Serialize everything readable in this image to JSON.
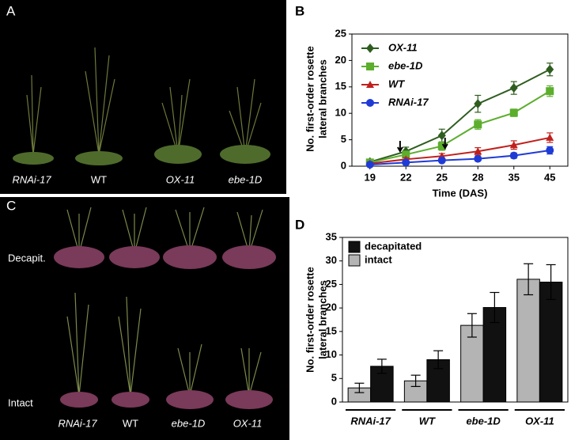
{
  "panel_a": {
    "letter": "A",
    "labels": [
      "RNAi-17",
      "WT",
      "OX-11",
      "ebe-1D"
    ]
  },
  "panel_c": {
    "letter": "C",
    "rows": [
      "Decapit.",
      "Intact"
    ],
    "labels": [
      "RNAi-17",
      "WT",
      "ebe-1D",
      "OX-11"
    ]
  },
  "chart_data": [
    {
      "type": "line",
      "panel": "B",
      "xlabel": "Time (DAS)",
      "ylabel": [
        "No. first-order rosette",
        "lateral branches"
      ],
      "categories": [
        "19",
        "22",
        "25",
        "28",
        "35",
        "45"
      ],
      "ylim": [
        0,
        25
      ],
      "yticks": [
        0,
        5,
        10,
        15,
        20,
        25
      ],
      "series": [
        {
          "name": "OX-11",
          "color": "#2e5d1f",
          "marker": "diamond",
          "values": [
            0.8,
            2.8,
            5.8,
            11.8,
            14.8,
            18.3
          ],
          "errors": [
            0.5,
            0.8,
            1.2,
            1.6,
            1.2,
            1.2
          ]
        },
        {
          "name": "ebe-1D",
          "color": "#5cae2c",
          "marker": "square",
          "values": [
            0.7,
            2.2,
            3.8,
            7.9,
            10.1,
            14.2
          ],
          "errors": [
            0.3,
            0.5,
            0.8,
            0.9,
            0.7,
            1.0
          ]
        },
        {
          "name": "WT",
          "color": "#c0201d",
          "marker": "triangle",
          "values": [
            0.5,
            1.3,
            1.9,
            2.8,
            4.0,
            5.4
          ],
          "errors": [
            0.3,
            0.3,
            0.5,
            0.7,
            0.8,
            0.9
          ]
        },
        {
          "name": "RNAi-17",
          "color": "#1f3bd6",
          "marker": "circle",
          "values": [
            0.3,
            0.7,
            1.1,
            1.4,
            2.0,
            3.0
          ],
          "errors": [
            0.2,
            0.2,
            0.3,
            0.4,
            0.5,
            0.7
          ]
        }
      ]
    },
    {
      "type": "bar",
      "panel": "D",
      "ylabel": [
        "No. first-order rosette",
        "lateral branches"
      ],
      "categories": [
        "RNAi-17",
        "WT",
        "ebe-1D",
        "OX-11"
      ],
      "ylim": [
        0,
        35
      ],
      "yticks": [
        0,
        5,
        10,
        15,
        20,
        25,
        30,
        35
      ],
      "legend_order": [
        1,
        0
      ],
      "series": [
        {
          "name": "intact",
          "color": "#b4b4b4",
          "values": [
            3.0,
            4.5,
            16.3,
            26.1
          ],
          "errors": [
            1.0,
            1.2,
            2.5,
            3.3
          ]
        },
        {
          "name": "decapitated",
          "color": "#111111",
          "values": [
            7.6,
            9.0,
            20.1,
            25.5
          ],
          "errors": [
            1.5,
            1.9,
            3.2,
            3.7
          ]
        }
      ]
    }
  ]
}
